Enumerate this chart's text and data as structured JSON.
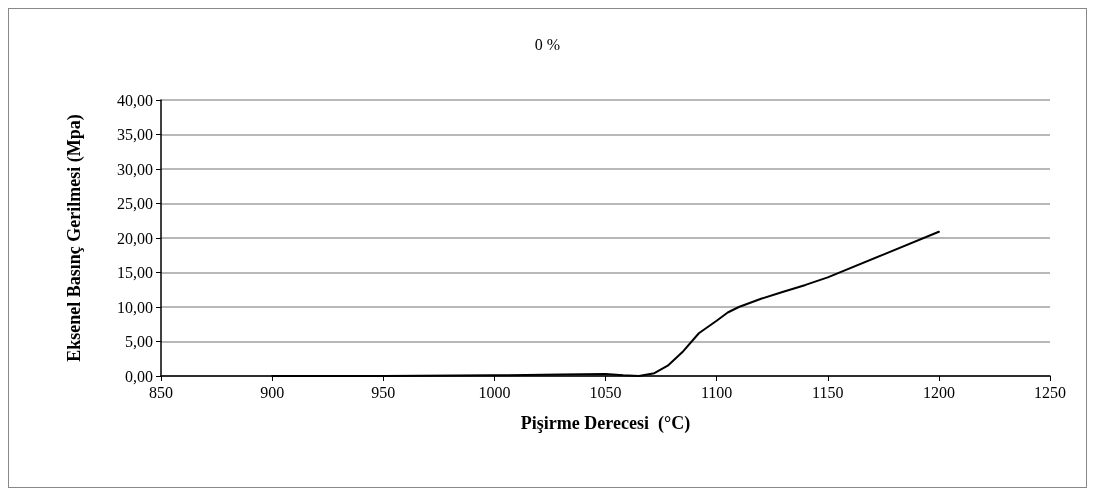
{
  "chart_data": {
    "type": "line",
    "title": "0 %",
    "xlabel": "Pişirme Derecesi  (°C)",
    "ylabel": "Eksenel Basınç Gerilmesi (Mpa)",
    "x": [
      900,
      950,
      1000,
      1030,
      1050,
      1058,
      1065,
      1072,
      1078,
      1085,
      1092,
      1100,
      1105,
      1110,
      1120,
      1130,
      1140,
      1150,
      1175,
      1200
    ],
    "series": [
      {
        "color": "#000000",
        "values": [
          0,
          0,
          0.1,
          0.2,
          0.3,
          0.1,
          0,
          0.4,
          1.5,
          3.6,
          6.2,
          8,
          9.2,
          10,
          11.2,
          12.2,
          13.2,
          14.3,
          17.6,
          20.9
        ]
      }
    ],
    "xlim": [
      850,
      1250
    ],
    "xticks": [
      850,
      900,
      950,
      1000,
      1050,
      1100,
      1150,
      1200,
      1250
    ],
    "ylim": [
      0,
      40
    ],
    "yticks": [
      {
        "value": 0,
        "label": "0,00"
      },
      {
        "value": 5,
        "label": "5,00"
      },
      {
        "value": 10,
        "label": "10,00"
      },
      {
        "value": 15,
        "label": "15,00"
      },
      {
        "value": 20,
        "label": "20,00"
      },
      {
        "value": 25,
        "label": "25,00"
      },
      {
        "value": 30,
        "label": "30,00"
      },
      {
        "value": 35,
        "label": "35,00"
      },
      {
        "value": 40,
        "label": "40,00"
      }
    ],
    "grid": "y",
    "marker": "none",
    "line_style": "solid"
  }
}
